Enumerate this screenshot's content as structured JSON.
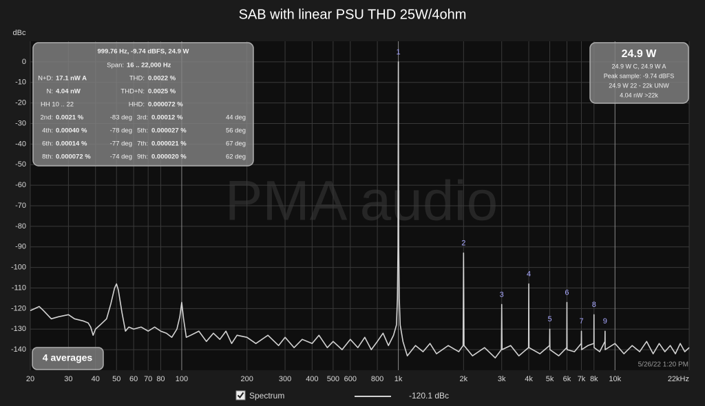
{
  "chart_data": {
    "type": "line",
    "title": "SAB with linear PSU THD 25W/4ohm",
    "y_label": "dBc",
    "log_x": true,
    "grid": true,
    "xlim": [
      20,
      22000
    ],
    "ylim": [
      -150,
      10
    ],
    "xticks": [
      20,
      30,
      40,
      50,
      60,
      70,
      80,
      100,
      200,
      300,
      400,
      {
        "value": 500,
        "label": "500"
      },
      600,
      800,
      {
        "value": 1000,
        "label": "1k"
      },
      {
        "value": 2000,
        "label": "2k"
      },
      {
        "value": 3000,
        "label": "3k"
      },
      {
        "value": 4000,
        "label": "4k"
      },
      {
        "value": 5000,
        "label": "5k"
      },
      {
        "value": 6000,
        "label": "6k"
      },
      {
        "value": 7000,
        "label": "7k"
      },
      {
        "value": 8000,
        "label": "8k"
      },
      {
        "value": 10000,
        "label": "10k"
      },
      {
        "value": 22000,
        "label": "22kHz"
      }
    ],
    "yticks": [
      0,
      -10,
      -20,
      -30,
      -40,
      -50,
      -60,
      -70,
      -80,
      -90,
      -100,
      -110,
      -120,
      -130,
      -140
    ],
    "x": [
      20,
      21,
      22,
      23,
      25,
      27,
      30,
      32,
      35,
      37,
      38,
      39,
      40,
      42,
      45,
      47,
      49,
      50,
      51,
      53,
      55,
      57,
      60,
      65,
      70,
      75,
      80,
      85,
      90,
      95,
      98,
      100,
      102,
      105,
      110,
      120,
      130,
      140,
      150,
      160,
      170,
      180,
      200,
      220,
      250,
      280,
      300,
      330,
      360,
      400,
      430,
      470,
      500,
      550,
      600,
      650,
      700,
      750,
      800,
      850,
      900,
      950,
      980,
      990,
      996,
      1000,
      1004,
      1010,
      1020,
      1050,
      1100,
      1200,
      1300,
      1400,
      1500,
      1700,
      1900,
      1990,
      2000,
      2010,
      2200,
      2500,
      2800,
      2990,
      3000,
      3010,
      3300,
      3600,
      3990,
      4000,
      4010,
      4500,
      4990,
      5000,
      5010,
      5500,
      5990,
      6000,
      6010,
      6500,
      6990,
      7000,
      7010,
      7500,
      7990,
      8000,
      8010,
      8500,
      8990,
      9000,
      9010,
      10000,
      11000,
      12000,
      13000,
      14000,
      15000,
      16000,
      17000,
      18000,
      19000,
      20000,
      21000,
      22000
    ],
    "series": [
      {
        "name": "Spectrum",
        "color": "#d4d4d4",
        "values": [
          -121,
          -120,
          -119,
          -121,
          -125,
          -124,
          -123,
          -125,
          -126,
          -127,
          -129,
          -133,
          -130,
          -128,
          -125,
          -118,
          -110,
          -108,
          -111,
          -122,
          -131,
          -129,
          -130,
          -129,
          -131,
          -129,
          -131,
          -132,
          -134,
          -130,
          -124,
          -117,
          -125,
          -134,
          -133,
          -131,
          -136,
          -132,
          -135,
          -131,
          -137,
          -133,
          -134,
          -137,
          -133,
          -138,
          -134,
          -139,
          -135,
          -137,
          -133,
          -139,
          -136,
          -140,
          -135,
          -139,
          -134,
          -140,
          -136,
          -132,
          -138,
          -133,
          -128,
          -115,
          -90,
          0,
          -90,
          -115,
          -128,
          -136,
          -143,
          -138,
          -141,
          -137,
          -142,
          -138,
          -141,
          -138,
          -93,
          -138,
          -143,
          -139,
          -144,
          -140,
          -118,
          -140,
          -138,
          -143,
          -139,
          -108,
          -139,
          -142,
          -138,
          -130,
          -140,
          -143,
          -139,
          -117,
          -140,
          -141,
          -137,
          -131,
          -140,
          -138,
          -137,
          -123,
          -139,
          -141,
          -136,
          -131,
          -140,
          -137,
          -142,
          -138,
          -141,
          -136,
          -142,
          -137,
          -141,
          -138,
          -142,
          -137,
          -141,
          -139
        ]
      }
    ],
    "harmonics": [
      {
        "label": "1",
        "freq": 1000,
        "level": 0
      },
      {
        "label": "2",
        "freq": 2000,
        "level": -93
      },
      {
        "label": "3",
        "freq": 3000,
        "level": -118
      },
      {
        "label": "4",
        "freq": 4000,
        "level": -108
      },
      {
        "label": "5",
        "freq": 5000,
        "level": -130
      },
      {
        "label": "6",
        "freq": 6000,
        "level": -117
      },
      {
        "label": "7",
        "freq": 7000,
        "level": -131
      },
      {
        "label": "8",
        "freq": 8000,
        "level": -123
      },
      {
        "label": "9",
        "freq": 9000,
        "level": -131
      }
    ],
    "legend_reading": "-120.1 dBc"
  },
  "watermark": "PMA audio",
  "timestamp": "5/26/22 1:20 PM",
  "averages_button": "4 averages",
  "info_panel": {
    "rows": [
      [
        "999.76 Hz, -9.74 dBFS, 24.9 W"
      ],
      [
        "Span:",
        "16 .. 22,000 Hz"
      ],
      [
        "N+D:",
        "17.1 nW A",
        "THD:",
        "0.0022 %"
      ],
      [
        "N:",
        "4.04 nW",
        "THD+N:",
        "0.0025 %"
      ],
      [
        "HH 10 .. 22",
        "HHD:",
        "0.000072 %"
      ],
      [
        "2nd:",
        "0.0021 %",
        "-83 deg",
        "3rd:",
        "0.00012 %",
        "44 deg"
      ],
      [
        "4th:",
        "0.00040 %",
        "-78 deg",
        "5th:",
        "0.000027 %",
        "56 deg"
      ],
      [
        "6th:",
        "0.00014 %",
        "-77 deg",
        "7th:",
        "0.000021 %",
        "67 deg"
      ],
      [
        "8th:",
        "0.000072 %",
        "-74 deg",
        "9th:",
        "0.000020 %",
        "62 deg"
      ]
    ]
  },
  "power_panel": {
    "headline": "24.9 W",
    "lines": [
      "24.9 W C, 24.9 W A",
      "Peak sample: -9.74 dBFS",
      "24.9 W 22 - 22k UNW",
      "4.04 nW >22k"
    ]
  }
}
